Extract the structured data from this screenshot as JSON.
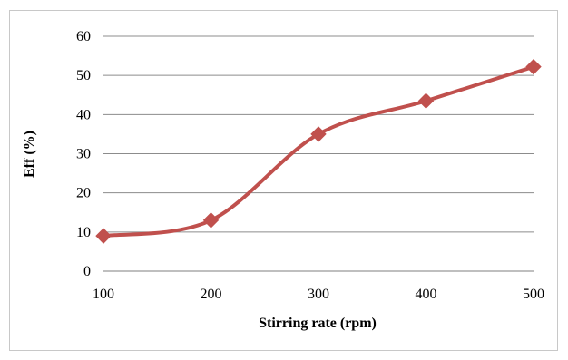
{
  "chart_data": {
    "type": "line",
    "title": "",
    "xlabel": "Stirring rate (rpm)",
    "ylabel": "Eff (%)",
    "x": [
      100,
      200,
      300,
      400,
      500
    ],
    "xticks": [
      "100",
      "200",
      "300",
      "400",
      "500"
    ],
    "yticks": [
      "0",
      "10",
      "20",
      "30",
      "40",
      "50",
      "60"
    ],
    "xlim": [
      100,
      500
    ],
    "ylim": [
      0,
      60
    ],
    "grid": "horizontal",
    "smooth": true,
    "series": [
      {
        "values": [
          9,
          13,
          35,
          43.5,
          52.2
        ],
        "color": "#c0504d",
        "marker": "diamond"
      }
    ]
  }
}
